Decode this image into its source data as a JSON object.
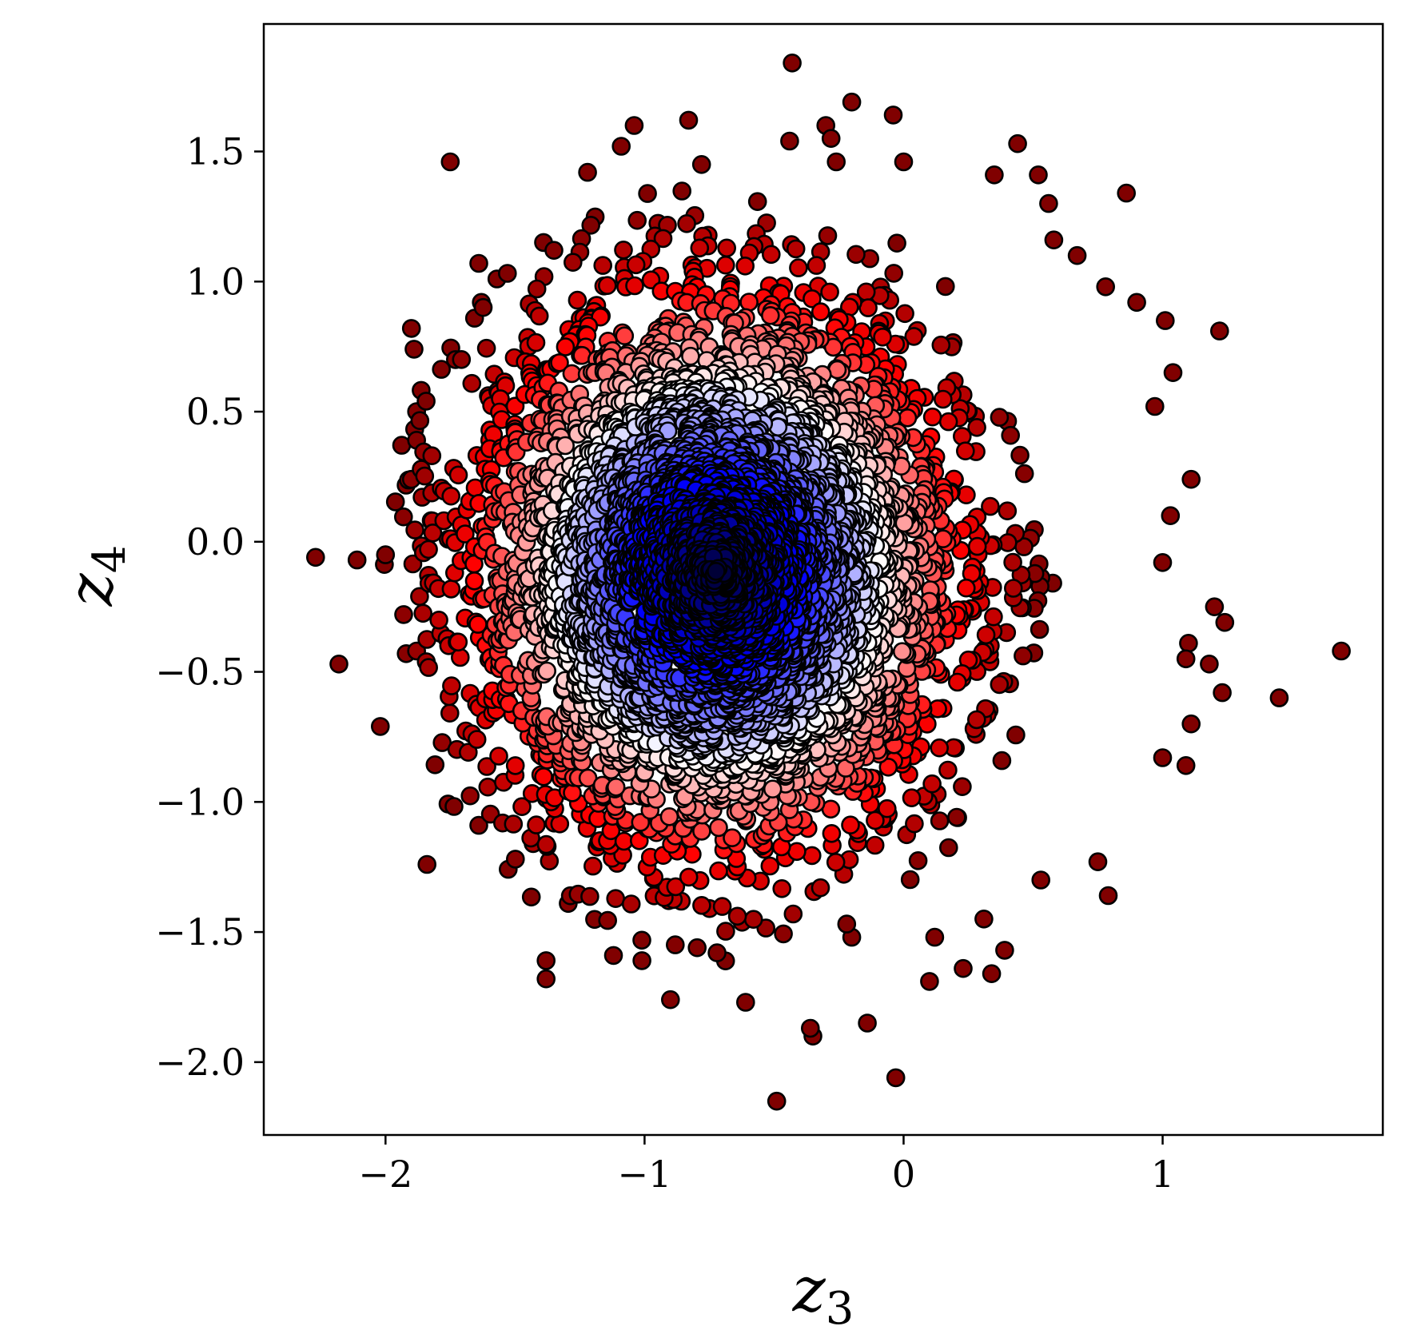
{
  "chart_data": {
    "type": "scatter",
    "title": "",
    "xlabel": "z",
    "xlabel_sub": "3",
    "ylabel": "z",
    "ylabel_sub": "4",
    "xlim": [
      -2.47,
      1.85
    ],
    "ylim": [
      -2.28,
      1.99
    ],
    "xticks": [
      -2,
      -1,
      0,
      1
    ],
    "xtick_labels": [
      "−2",
      "−1",
      "0",
      "1"
    ],
    "yticks": [
      -2.0,
      -1.5,
      -1.0,
      -0.5,
      0.0,
      0.5,
      1.0,
      1.5
    ],
    "ytick_labels": [
      "−2.0",
      "−1.5",
      "−1.0",
      "−0.5",
      "0.0",
      "0.5",
      "1.0",
      "1.5"
    ],
    "grid": false,
    "legend": "none",
    "colormap": "seismic",
    "color_value_range": [
      0,
      2.5
    ],
    "marker": "circle, black edge",
    "colors": {
      "dark_blue": "#000033",
      "blue": "#0000ff",
      "white": "#ffffff",
      "red": "#ff0000",
      "dark_red": "#800000",
      "edge": "#000000"
    },
    "cloud": {
      "center": [
        -0.72,
        -0.12
      ],
      "spread_x": 0.5,
      "spread_y": 0.58,
      "count": 4500,
      "note": "color encodes distance from cloud center (dark blue at center to dark red at edges)"
    },
    "points": [
      [
        -0.43,
        1.84
      ],
      [
        -0.2,
        1.69
      ],
      [
        -0.04,
        1.64
      ],
      [
        -0.83,
        1.62
      ],
      [
        -1.04,
        1.6
      ],
      [
        -0.3,
        1.6
      ],
      [
        -0.44,
        1.54
      ],
      [
        0.44,
        1.53
      ],
      [
        -0.28,
        1.55
      ],
      [
        -1.09,
        1.52
      ],
      [
        -1.75,
        1.46
      ],
      [
        -0.78,
        1.45
      ],
      [
        0.0,
        1.46
      ],
      [
        -0.26,
        1.46
      ],
      [
        0.35,
        1.41
      ],
      [
        0.52,
        1.41
      ],
      [
        -1.22,
        1.42
      ],
      [
        0.86,
        1.34
      ],
      [
        0.56,
        1.3
      ],
      [
        0.58,
        1.16
      ],
      [
        0.67,
        1.1
      ],
      [
        0.78,
        0.98
      ],
      [
        0.9,
        0.92
      ],
      [
        1.01,
        0.85
      ],
      [
        1.22,
        0.81
      ],
      [
        1.04,
        0.65
      ],
      [
        0.97,
        0.52
      ],
      [
        1.11,
        0.24
      ],
      [
        1.03,
        0.1
      ],
      [
        1.0,
        -0.08
      ],
      [
        1.2,
        -0.25
      ],
      [
        1.24,
        -0.31
      ],
      [
        1.69,
        -0.42
      ],
      [
        1.1,
        -0.39
      ],
      [
        1.09,
        -0.45
      ],
      [
        1.18,
        -0.47
      ],
      [
        1.23,
        -0.58
      ],
      [
        1.45,
        -0.6
      ],
      [
        1.11,
        -0.7
      ],
      [
        1.0,
        -0.83
      ],
      [
        1.09,
        -0.86
      ],
      [
        0.75,
        -1.23
      ],
      [
        0.79,
        -1.36
      ],
      [
        0.53,
        -1.3
      ],
      [
        0.31,
        -1.45
      ],
      [
        0.39,
        -1.57
      ],
      [
        0.23,
        -1.64
      ],
      [
        0.34,
        -1.66
      ],
      [
        0.1,
        -1.69
      ],
      [
        0.12,
        -1.52
      ],
      [
        -0.03,
        -2.06
      ],
      [
        -0.49,
        -2.15
      ],
      [
        -0.35,
        -1.9
      ],
      [
        -0.36,
        -1.87
      ],
      [
        -0.14,
        -1.85
      ],
      [
        -0.61,
        -1.77
      ],
      [
        -0.9,
        -1.76
      ],
      [
        -1.38,
        -1.61
      ],
      [
        -1.38,
        -1.68
      ],
      [
        -1.01,
        -1.61
      ],
      [
        -1.12,
        -1.59
      ],
      [
        -0.72,
        -1.58
      ],
      [
        -0.2,
        -1.52
      ],
      [
        -1.84,
        -1.24
      ],
      [
        -1.64,
        -1.09
      ],
      [
        -1.43,
        -1.16
      ],
      [
        -2.02,
        -0.71
      ],
      [
        -2.18,
        -0.47
      ],
      [
        -2.27,
        -0.06
      ],
      [
        -2.11,
        -0.07
      ],
      [
        -2.0,
        -0.05
      ],
      [
        -1.9,
        0.82
      ],
      [
        -1.89,
        0.74
      ],
      [
        -1.64,
        1.07
      ],
      [
        -1.57,
        1.01
      ],
      [
        -1.63,
        0.92
      ],
      [
        -1.88,
        0.5
      ],
      [
        -1.88,
        0.39
      ],
      [
        -1.9,
        0.24
      ],
      [
        -1.93,
        -0.28
      ],
      [
        -1.92,
        -0.43
      ],
      [
        -1.88,
        -0.42
      ],
      [
        -1.73,
        0.7
      ],
      [
        -1.39,
        1.15
      ],
      [
        -1.35,
        1.12
      ]
    ]
  }
}
